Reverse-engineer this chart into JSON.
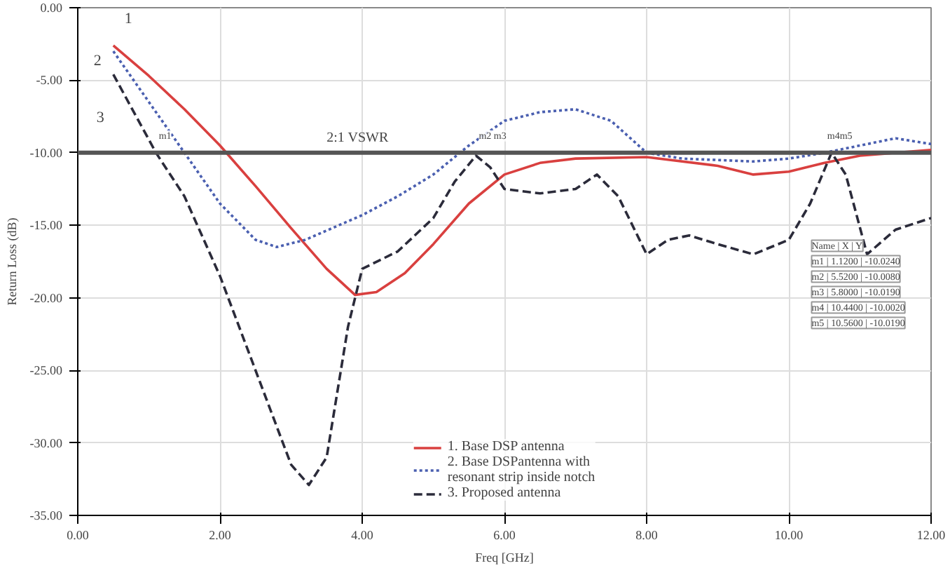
{
  "chart_data": {
    "type": "line",
    "xlabel": "Freq [GHz]",
    "ylabel": "Return Loss (dB)",
    "xlim": [
      0,
      12
    ],
    "ylim": [
      -35,
      0
    ],
    "xticks": [
      {
        "value": 0,
        "label": "0.00"
      },
      {
        "value": 2,
        "label": "2.00"
      },
      {
        "value": 4,
        "label": "4.00"
      },
      {
        "value": 6,
        "label": "6.00"
      },
      {
        "value": 8,
        "label": "8.00"
      },
      {
        "value": 10,
        "label": "10.00"
      },
      {
        "value": 12,
        "label": "12.00"
      }
    ],
    "yticks": [
      {
        "value": 0,
        "label": "0.00"
      },
      {
        "value": -5,
        "label": "-5.00"
      },
      {
        "value": -10,
        "label": "-10.00"
      },
      {
        "value": -15,
        "label": "-15.00"
      },
      {
        "value": -20,
        "label": "-20.00"
      },
      {
        "value": -25,
        "label": "-25.00"
      },
      {
        "value": -30,
        "label": "-30.00"
      },
      {
        "value": -35,
        "label": "-35.00"
      }
    ],
    "grid": true,
    "legend": "bottom",
    "marker": "none",
    "series": [
      {
        "name": "1. Base DSP antenna",
        "color": "#d9403f",
        "line_style": "solid",
        "x": [
          0.5,
          1,
          1.5,
          2,
          2.5,
          3,
          3.5,
          3.9,
          4.2,
          4.6,
          5,
          5.5,
          6,
          6.5,
          7,
          8,
          9,
          9.5,
          10,
          10.5,
          11,
          11.5,
          12
        ],
        "values": [
          -2.6,
          -4.7,
          -7,
          -9.5,
          -12.3,
          -15.2,
          -18,
          -19.8,
          -19.6,
          -18.3,
          -16.3,
          -13.5,
          -11.5,
          -10.7,
          -10.4,
          -10.3,
          -10.9,
          -11.5,
          -11.3,
          -10.7,
          -10.2,
          -10,
          -9.8
        ]
      },
      {
        "name": "2. Base DSPantenna with\nresonant strip inside notch",
        "color": "#4a5fb0",
        "line_style": "dotted",
        "x": [
          0.5,
          1,
          1.5,
          2,
          2.5,
          2.8,
          3.2,
          4,
          4.5,
          5,
          5.5,
          6,
          6.5,
          7,
          7.5,
          8,
          8.5,
          9,
          9.5,
          10,
          10.5,
          11,
          11.5,
          12
        ],
        "values": [
          -3,
          -6.5,
          -10,
          -13.5,
          -16,
          -16.5,
          -16,
          -14.3,
          -13,
          -11.5,
          -9.5,
          -7.8,
          -7.2,
          -7,
          -7.8,
          -10,
          -10.4,
          -10.5,
          -10.6,
          -10.4,
          -10,
          -9.5,
          -9,
          -9.4
        ]
      },
      {
        "name": "3. Proposed antenna",
        "color": "#2b2b3a",
        "line_style": "dashed",
        "x": [
          0.5,
          1.1,
          1.5,
          2,
          2.5,
          3,
          3.25,
          3.5,
          3.8,
          4,
          4.5,
          5,
          5.3,
          5.6,
          5.8,
          6,
          6.5,
          7,
          7.3,
          7.6,
          8,
          8.3,
          8.6,
          9,
          9.5,
          10,
          10.3,
          10.6,
          10.8,
          11.1,
          11.5,
          12
        ],
        "values": [
          -4.6,
          -10,
          -13,
          -18.5,
          -25,
          -31.5,
          -32.9,
          -31,
          -22,
          -18,
          -16.8,
          -14.5,
          -12,
          -10.2,
          -11,
          -12.5,
          -12.8,
          -12.5,
          -11.5,
          -13,
          -17,
          -16,
          -15.7,
          -16.3,
          -17,
          -16,
          -13.5,
          -10,
          -11.5,
          -17,
          -15.3,
          -14.5
        ]
      }
    ],
    "ref_lines": [
      {
        "axis": "y",
        "value": -10,
        "color": "#555555"
      }
    ],
    "annotations": [
      {
        "text": "1",
        "x": 0.5,
        "y": -2.6
      },
      {
        "text": "2",
        "x": 0.5,
        "y": -3
      },
      {
        "text": "3",
        "x": 0.5,
        "y": -4.6
      },
      {
        "text": "m1",
        "x": 1.1,
        "y": -10
      },
      {
        "text": "m2 m3",
        "x": 5.6,
        "y": -10
      },
      {
        "text": "m4m5",
        "x": 10.5,
        "y": -10
      },
      {
        "text": "2:1 VSWR",
        "x": 3.5,
        "y": -10
      },
      "Name | X | Y",
      "m1 | 1.1200 | -10.0240",
      "m2 | 5.5200 | -10.0080",
      "m3 | 5.8000 | -10.0190",
      "m4 | 10.4400 | -10.0020",
      "m5 | 10.5600 | -10.0190"
    ]
  }
}
